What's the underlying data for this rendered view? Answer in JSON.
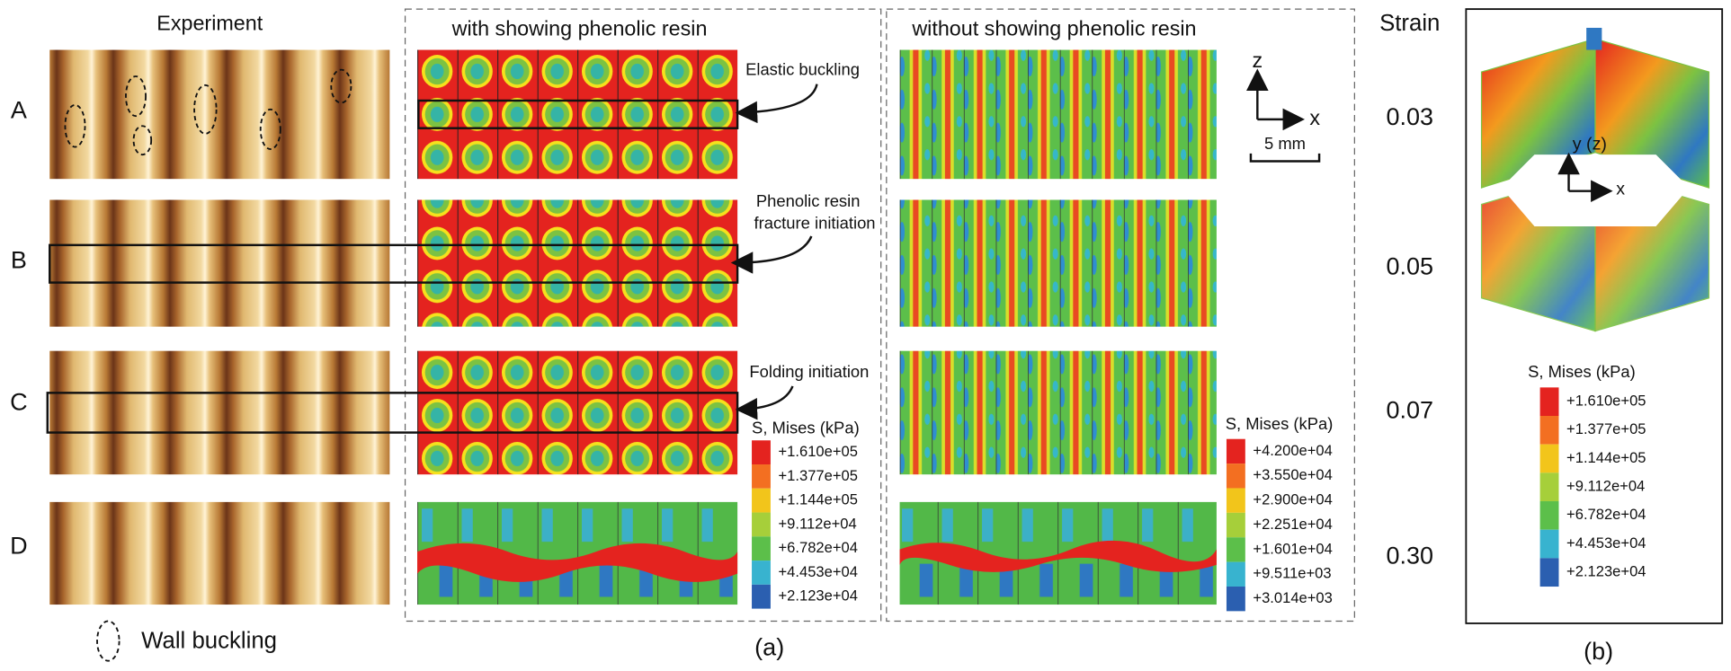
{
  "panel_a": {
    "experiment": {
      "title": "Experiment",
      "rows": [
        "A",
        "B",
        "C",
        "D"
      ],
      "legend": "Wall buckling"
    },
    "with_resin": {
      "title": "with showing phenolic resin",
      "elastic_label": "Elastic buckling",
      "fracture_label": [
        "Phenolic resin",
        "fracture initiation"
      ],
      "folding_label": "Folding initiation",
      "legend": {
        "title": "S, Mises (kPa)",
        "levels": [
          "+1.610e+05",
          "+1.377e+05",
          "+1.144e+05",
          "+9.112e+04",
          "+6.782e+04",
          "+4.453e+04",
          "+2.123e+04"
        ]
      }
    },
    "without_resin": {
      "title": "without showing phenolic resin",
      "axes": {
        "z": "z",
        "x": "x",
        "scale": "5 mm"
      },
      "legend": {
        "title": "S, Mises (kPa)",
        "levels": [
          "+4.200e+04",
          "+3.550e+04",
          "+2.900e+04",
          "+2.251e+04",
          "+1.601e+04",
          "+9.511e+03",
          "+3.014e+03"
        ]
      }
    },
    "strain": {
      "title": "Strain",
      "values": [
        "0.03",
        "0.05",
        "0.07",
        "0.30"
      ]
    },
    "label": "(a)"
  },
  "panel_b": {
    "axes": {
      "y": "y (z)",
      "x": "x"
    },
    "legend": {
      "title": "S, Mises (kPa)",
      "levels": [
        "+1.610e+05",
        "+1.377e+05",
        "+1.144e+05",
        "+9.112e+04",
        "+6.782e+04",
        "+4.453e+04",
        "+2.123e+04"
      ]
    },
    "label": "(b)"
  }
}
